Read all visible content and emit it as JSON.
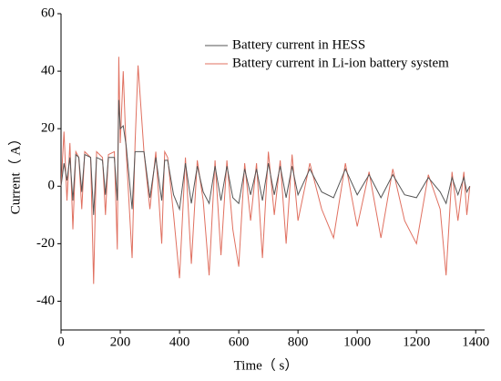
{
  "chart_data": {
    "type": "line",
    "xlabel": "Time（ s）",
    "ylabel": "Current（ A）",
    "x": [
      0,
      10,
      20,
      30,
      40,
      50,
      60,
      70,
      80,
      100,
      110,
      120,
      140,
      150,
      160,
      180,
      190,
      195,
      200,
      210,
      220,
      240,
      250,
      260,
      280,
      300,
      320,
      340,
      350,
      360,
      380,
      400,
      420,
      440,
      460,
      480,
      500,
      520,
      540,
      560,
      580,
      600,
      620,
      640,
      660,
      680,
      700,
      720,
      740,
      760,
      780,
      800,
      840,
      880,
      920,
      960,
      1000,
      1040,
      1080,
      1120,
      1160,
      1200,
      1240,
      1280,
      1300,
      1320,
      1340,
      1360,
      1370,
      1380
    ],
    "series": [
      {
        "name": "Battery current in HESS",
        "color": "#555555",
        "values": [
          0,
          8,
          2,
          10,
          -5,
          11,
          10,
          -2,
          11,
          10,
          -10,
          10,
          9,
          -3,
          10,
          10,
          -5,
          30,
          20,
          21,
          14,
          -8,
          12,
          12,
          12,
          -4,
          10,
          -5,
          9,
          9,
          -3,
          -8,
          8,
          -6,
          7,
          -2,
          -6,
          7,
          -5,
          7,
          -4,
          -6,
          6,
          -3,
          6,
          -5,
          8,
          -3,
          7,
          -4,
          7,
          -3,
          6,
          -2,
          -4,
          6,
          -3,
          4,
          -4,
          4,
          -3,
          -4,
          3,
          -2,
          -6,
          3,
          -3,
          3,
          -2,
          0
        ]
      },
      {
        "name": "Battery current in Li-ion battery system",
        "color": "#e07060",
        "values": [
          0,
          19,
          -5,
          15,
          -15,
          12,
          10,
          -8,
          12,
          10,
          -34,
          12,
          10,
          -10,
          11,
          12,
          -22,
          45,
          15,
          40,
          12,
          -25,
          15,
          42,
          12,
          -8,
          12,
          -20,
          12,
          10,
          -10,
          -32,
          10,
          -27,
          9,
          -5,
          -31,
          9,
          -24,
          9,
          -15,
          -28,
          8,
          -12,
          8,
          -25,
          12,
          -10,
          9,
          -20,
          11,
          -12,
          8,
          -8,
          -18,
          8,
          -14,
          5,
          -18,
          6,
          -12,
          -20,
          4,
          -8,
          -31,
          5,
          -12,
          5,
          -10,
          0
        ]
      }
    ],
    "xlim": [
      0,
      1430
    ],
    "xticks": [
      0,
      200,
      400,
      600,
      800,
      1000,
      1200,
      1400
    ],
    "ylim": [
      -50,
      60
    ],
    "yticks": [
      -40,
      -20,
      0,
      20,
      40,
      60
    ],
    "legend": "upper right",
    "grid": false
  }
}
